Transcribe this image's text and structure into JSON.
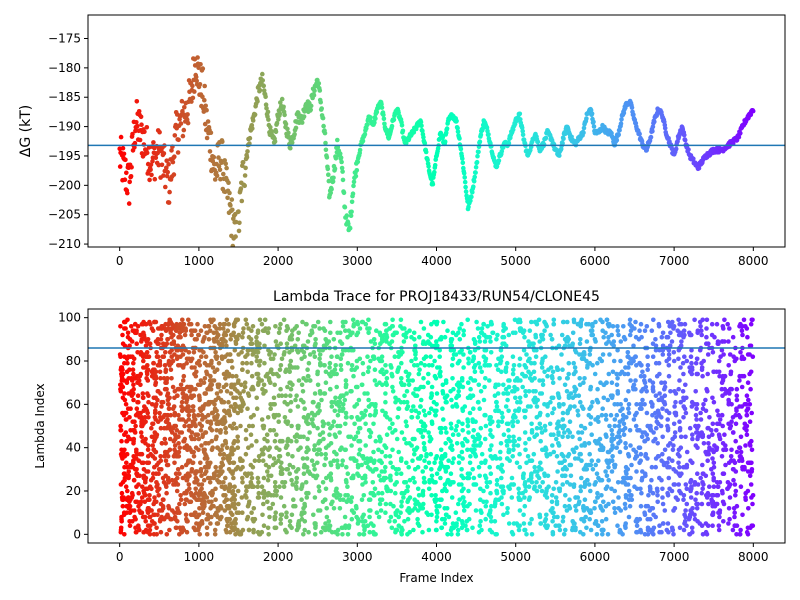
{
  "chart_data": [
    {
      "type": "scatter",
      "title": "",
      "xlabel": "",
      "ylabel": "ΔG (kT)",
      "xlim": [
        -400,
        8400
      ],
      "ylim": [
        -210.5,
        -171
      ],
      "xticks": [
        0,
        1000,
        2000,
        3000,
        4000,
        5000,
        6000,
        7000,
        8000
      ],
      "xtick_labels": [
        "0",
        "1000",
        "2000",
        "3000",
        "4000",
        "5000",
        "6000",
        "7000",
        "8000"
      ],
      "yticks": [
        -210,
        -205,
        -200,
        -195,
        -190,
        -185,
        -180,
        -175
      ],
      "ytick_labels": [
        "−210",
        "−205",
        "−200",
        "−195",
        "−190",
        "−185",
        "−180",
        "−175"
      ],
      "grid": false,
      "colormap": "rainbow (red at start → violet at end)",
      "hline": {
        "y": -193.2,
        "color": "#1f77b4"
      },
      "series_anchor_x": [
        0,
        120,
        200,
        300,
        400,
        500,
        620,
        720,
        820,
        900,
        960,
        1000,
        1050,
        1100,
        1150,
        1200,
        1280,
        1350,
        1420,
        1480,
        1550,
        1600,
        1650,
        1700,
        1750,
        1800,
        1850,
        1900,
        1950,
        2000,
        2050,
        2100,
        2150,
        2200,
        2250,
        2300,
        2350,
        2400,
        2450,
        2500,
        2550,
        2600,
        2650,
        2700,
        2750,
        2800,
        2850,
        2900,
        2950,
        3000,
        3050,
        3100,
        3150,
        3200,
        3250,
        3300,
        3350,
        3400,
        3450,
        3500,
        3550,
        3600,
        3650,
        3700,
        3750,
        3800,
        3850,
        3900,
        3950,
        4000,
        4050,
        4100,
        4150,
        4200,
        4250,
        4300,
        4350,
        4400,
        4450,
        4500,
        4550,
        4600,
        4650,
        4700,
        4750,
        4800,
        4850,
        4900,
        4950,
        5000,
        5050,
        5100,
        5150,
        5200,
        5250,
        5300,
        5350,
        5400,
        5450,
        5500,
        5550,
        5600,
        5650,
        5700,
        5750,
        5800,
        5850,
        5900,
        5950,
        6000,
        6050,
        6100,
        6150,
        6200,
        6250,
        6300,
        6350,
        6400,
        6450,
        6500,
        6550,
        6600,
        6650,
        6700,
        6750,
        6800,
        6850,
        6900,
        6950,
        7000,
        7050,
        7100,
        7150,
        7200,
        7300,
        7400,
        7500,
        7600,
        7700,
        7800,
        7900,
        7950,
        8000
      ],
      "series_anchor_y": [
        -195,
        -200,
        -189,
        -192,
        -196,
        -194,
        -200,
        -191,
        -188,
        -185,
        -178,
        -182,
        -184,
        -190,
        -193,
        -198,
        -195,
        -201,
        -206,
        -210,
        -199,
        -195,
        -191,
        -188,
        -184,
        -182,
        -186,
        -191,
        -193,
        -188,
        -186,
        -190,
        -193,
        -191,
        -188,
        -189,
        -186,
        -187,
        -184,
        -182,
        -187,
        -193,
        -202,
        -198,
        -193,
        -196,
        -205,
        -208,
        -200,
        -196,
        -193,
        -191,
        -188,
        -190,
        -187,
        -186,
        -190,
        -192,
        -189,
        -187,
        -189,
        -193,
        -192,
        -191,
        -190,
        -189,
        -193,
        -197,
        -200,
        -195,
        -191,
        -193,
        -189,
        -188,
        -189,
        -193,
        -198,
        -204,
        -201,
        -197,
        -192,
        -189,
        -191,
        -194,
        -197,
        -195,
        -193,
        -193,
        -191,
        -189,
        -188,
        -192,
        -195,
        -193,
        -191,
        -194,
        -193,
        -191,
        -192,
        -194,
        -195,
        -192,
        -190,
        -192,
        -193,
        -192,
        -191,
        -188,
        -187,
        -191,
        -191,
        -190,
        -191,
        -191,
        -193,
        -191,
        -188,
        -186,
        -186,
        -189,
        -191,
        -193,
        -194,
        -192,
        -189,
        -187,
        -188,
        -191,
        -193,
        -195,
        -192,
        -190,
        -193,
        -195,
        -197,
        -195,
        -194,
        -194,
        -193,
        -192,
        -189,
        -188,
        -187,
        -186,
        -190
      ]
    },
    {
      "type": "scatter",
      "title": "Lambda Trace for PROJ18433/RUN54/CLONE45",
      "xlabel": "Frame Index",
      "ylabel": "Lambda Index",
      "xlim": [
        -400,
        8400
      ],
      "ylim": [
        -4,
        104
      ],
      "xticks": [
        0,
        1000,
        2000,
        3000,
        4000,
        5000,
        6000,
        7000,
        8000
      ],
      "xtick_labels": [
        "0",
        "1000",
        "2000",
        "3000",
        "4000",
        "5000",
        "6000",
        "7000",
        "8000"
      ],
      "yticks": [
        0,
        20,
        40,
        60,
        80,
        100
      ],
      "ytick_labels": [
        "0",
        "20",
        "40",
        "60",
        "80",
        "100"
      ],
      "grid": false,
      "colormap": "rainbow (red at start → violet at end)",
      "hline": {
        "y": 86,
        "color": "#1f77b4"
      },
      "note": "Dense scatter of lambda index (0–99) for frames 0–8000, grouped in vertical bursts"
    }
  ]
}
